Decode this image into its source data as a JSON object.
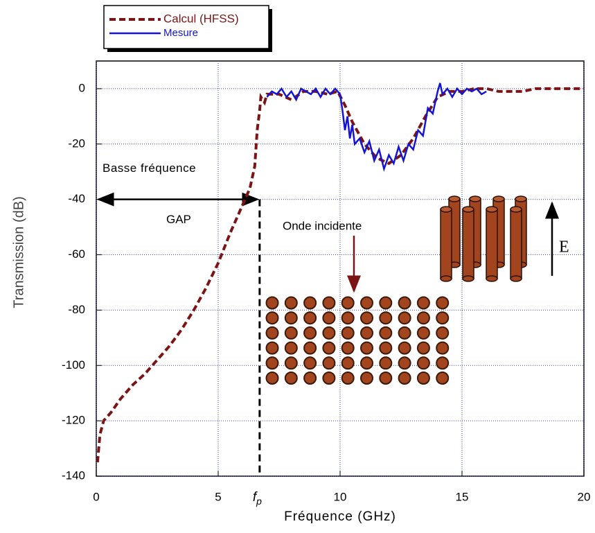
{
  "chart_data": {
    "type": "line",
    "ylabel": "Transmission (dB)",
    "xlabel": "Fréquence (GHz)",
    "xlim": [
      0,
      20
    ],
    "xticks": [
      0,
      5,
      10,
      15,
      20
    ],
    "ylim": [
      -140,
      10
    ],
    "yticks": [
      0,
      -20,
      -40,
      -60,
      -80,
      -100,
      -120,
      -140
    ],
    "grid": true,
    "series": [
      {
        "name": "Calcul (HFSS)",
        "color": "#7b1515",
        "dash": true,
        "x": [
          0.05,
          0.15,
          0.3,
          0.6,
          1,
          1.5,
          2,
          2.5,
          3,
          3.5,
          4,
          4.5,
          5,
          5.5,
          6,
          6.3,
          6.5,
          6.6,
          6.7,
          6.75,
          6.9,
          7,
          7.5,
          8,
          8.5,
          9,
          9.5,
          9.9,
          10.2,
          10.5,
          11,
          11.5,
          12,
          12.5,
          13,
          13.5,
          14,
          14.5,
          15,
          15.5,
          16,
          16.5,
          17,
          17.5,
          18,
          19,
          20
        ],
        "values": [
          -135,
          -125,
          -120,
          -117,
          -112,
          -107,
          -103,
          -98,
          -93,
          -87,
          -80,
          -72,
          -63,
          -52,
          -42,
          -36,
          -28,
          -15,
          -8,
          -3,
          -5,
          -2,
          -2,
          -4,
          -1,
          -1,
          -2,
          -1,
          -6,
          -12,
          -20,
          -25,
          -27,
          -24,
          -18,
          -10,
          -3,
          -1,
          -1,
          0,
          0,
          -1,
          -1,
          -1,
          0,
          0,
          0
        ]
      },
      {
        "name": "Mesure",
        "color": "#1414d2",
        "dash": false,
        "x": [
          7.0,
          7.2,
          7.4,
          7.6,
          7.8,
          8.0,
          8.2,
          8.4,
          8.6,
          8.8,
          9.0,
          9.2,
          9.4,
          9.6,
          9.8,
          10.0,
          10.1,
          10.2,
          10.3,
          10.4,
          10.5,
          10.6,
          10.8,
          11.0,
          11.2,
          11.4,
          11.6,
          11.8,
          12.0,
          12.2,
          12.4,
          12.6,
          12.8,
          13.0,
          13.2,
          13.4,
          13.6,
          13.8,
          14.0,
          14.1,
          14.2,
          14.4,
          14.6,
          14.8,
          15.0,
          15.2,
          15.4,
          15.6,
          15.8,
          16.0
        ],
        "values": [
          -3,
          -1,
          -2,
          0,
          -3,
          -1,
          -4,
          0,
          -1,
          -2,
          0,
          -3,
          0,
          -2,
          0,
          -2,
          -8,
          -15,
          -10,
          -18,
          -13,
          -20,
          -18,
          -23,
          -19,
          -26,
          -22,
          -29,
          -24,
          -27,
          -21,
          -26,
          -20,
          -22,
          -15,
          -17,
          -7,
          -9,
          -1,
          2,
          -2,
          0,
          -3,
          0,
          -2,
          0,
          -1,
          0,
          -2,
          -1
        ]
      }
    ],
    "gap": {
      "value": -40,
      "label_top": "Basse fréquence",
      "label_bottom": "GAP"
    },
    "fp": {
      "value": 6.7,
      "main": "f",
      "sub": "p"
    },
    "wave_label": "Onde incidente",
    "field_label": "E"
  }
}
